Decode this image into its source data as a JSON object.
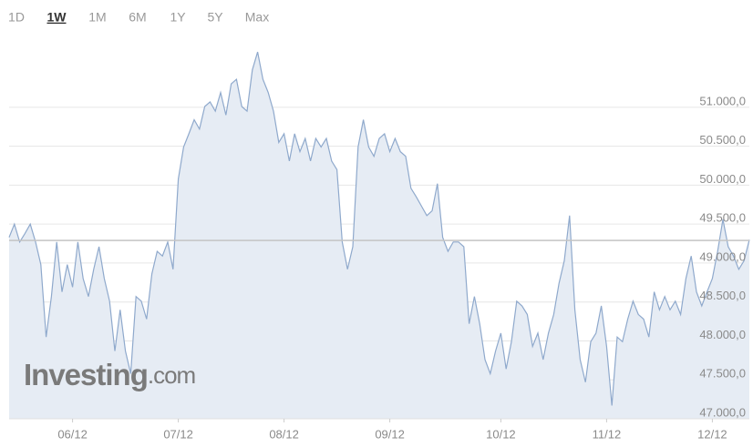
{
  "chart_data": {
    "type": "area",
    "ranges": [
      "1D",
      "1W",
      "1M",
      "6M",
      "1Y",
      "5Y",
      "Max"
    ],
    "active_range": 1,
    "logo_name": "Investing",
    "logo_suffix": ".com",
    "color": "#8fa9cc",
    "fill": "#e6ecf4",
    "reference_line": 49290,
    "reference_color": "#c4c4c4",
    "x": [
      0,
      1,
      2,
      3,
      4,
      5,
      6,
      7,
      8,
      9,
      10,
      11,
      12,
      13,
      14,
      15,
      16,
      17,
      18,
      19,
      20,
      21,
      22,
      23,
      24,
      25,
      26,
      27,
      28,
      29,
      30,
      31,
      32,
      33,
      34,
      35,
      36,
      37,
      38,
      39,
      40,
      41,
      42,
      43,
      44,
      45,
      46,
      47,
      48,
      49,
      50,
      51,
      52,
      53,
      54,
      55,
      56,
      57,
      58,
      59,
      60,
      61,
      62,
      63,
      64,
      65,
      66,
      67,
      68,
      69,
      70,
      71,
      72,
      73,
      74,
      75,
      76,
      77,
      78,
      79,
      80,
      81,
      82,
      83,
      84,
      85,
      86,
      87,
      88,
      89,
      90,
      91,
      92,
      93,
      94,
      95,
      96,
      97,
      98,
      99,
      100,
      101,
      102,
      103,
      104,
      105,
      106,
      107,
      108,
      109,
      110,
      111,
      112,
      113,
      114,
      115,
      116,
      117,
      118,
      119,
      120,
      121,
      122,
      123,
      124,
      125,
      126,
      127,
      128,
      129,
      130,
      131,
      132,
      133,
      134,
      135,
      136,
      137,
      138,
      139,
      140
    ],
    "values": [
      49330,
      49500,
      49270,
      49380,
      49500,
      49270,
      48980,
      48050,
      48570,
      49270,
      48630,
      48980,
      48690,
      49270,
      48800,
      48570,
      48920,
      49210,
      48800,
      48510,
      47870,
      48400,
      47870,
      47580,
      48570,
      48510,
      48280,
      48860,
      49150,
      49090,
      49270,
      48920,
      50080,
      50490,
      50660,
      50840,
      50720,
      51010,
      51070,
      50950,
      51190,
      50900,
      51300,
      51360,
      51010,
      50950,
      51480,
      51710,
      51360,
      51190,
      50950,
      50550,
      50660,
      50310,
      50660,
      50430,
      50600,
      50310,
      50600,
      50490,
      50600,
      50310,
      50200,
      49270,
      48920,
      49210,
      50490,
      50840,
      50490,
      50370,
      50600,
      50660,
      50430,
      50600,
      50430,
      50370,
      49960,
      49850,
      49730,
      49610,
      49670,
      50020,
      49330,
      49150,
      49270,
      49270,
      49210,
      48220,
      48570,
      48220,
      47760,
      47580,
      47870,
      48100,
      47640,
      47990,
      48510,
      48450,
      48340,
      47930,
      48100,
      47760,
      48100,
      48340,
      48740,
      49030,
      49610,
      48400,
      47760,
      47470,
      47990,
      48100,
      48450,
      47930,
      47170,
      48050,
      47990,
      48280,
      48510,
      48340,
      48280,
      48050,
      48630,
      48400,
      48570,
      48400,
      48510,
      48340,
      48800,
      49090,
      48630,
      48450,
      48630,
      48800,
      49150,
      49560,
      49210,
      49090,
      48920,
      49030,
      49300
    ],
    "xlim": [
      0,
      140
    ],
    "xticks": [
      {
        "value": 12,
        "label": "06/12"
      },
      {
        "value": 32,
        "label": "07/12"
      },
      {
        "value": 52,
        "label": "08/12"
      },
      {
        "value": 72,
        "label": "09/12"
      },
      {
        "value": 93,
        "label": "10/12"
      },
      {
        "value": 113,
        "label": "11/12"
      },
      {
        "value": 133,
        "label": "12/12"
      }
    ],
    "ylim": [
      47000,
      51770
    ],
    "yticks": [
      {
        "value": 47000,
        "label": "47.000,0"
      },
      {
        "value": 47500,
        "label": "47.500,0"
      },
      {
        "value": 48000,
        "label": "48.000,0"
      },
      {
        "value": 48500,
        "label": "48.500,0"
      },
      {
        "value": 49000,
        "label": "49.000,0"
      },
      {
        "value": 49500,
        "label": "49.500,0"
      },
      {
        "value": 50000,
        "label": "50.000,0"
      },
      {
        "value": 50500,
        "label": "50.500,0"
      },
      {
        "value": 51000,
        "label": "51.000,0"
      }
    ],
    "grid": true
  }
}
